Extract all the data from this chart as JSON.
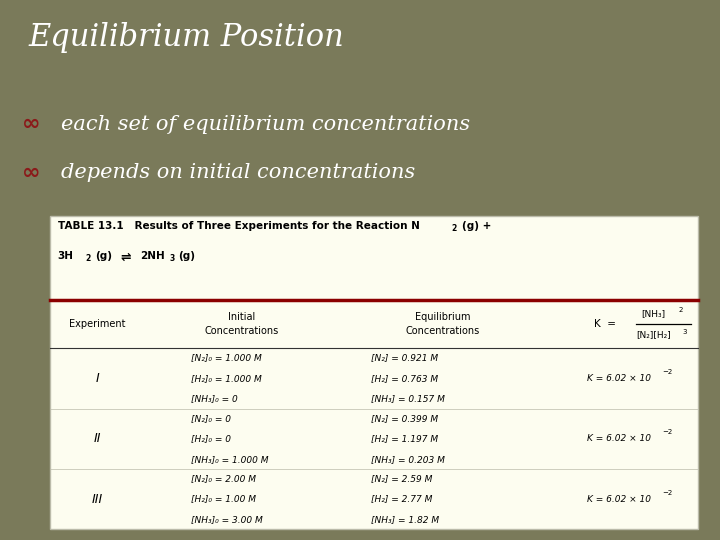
{
  "title": "Equilibrium Position",
  "bullet1": "each set of equilibrium concentrations",
  "bullet2": "depends on initial concentrations",
  "bg_color": "#7a7a5a",
  "table_bg": "#fdfdf0",
  "table_border_color": "#8b0000",
  "experiments": [
    "I",
    "II",
    "III"
  ],
  "initial_concs": [
    [
      "[N₂]₀ = 1.000 M",
      "[H₂]₀ = 1.000 M",
      "[NH₃]₀ = 0"
    ],
    [
      "[N₂]₀ = 0",
      "[H₂]₀ = 0",
      "[NH₃]₀ = 1.000 M"
    ],
    [
      "[N₂]₀ = 2.00 M",
      "[H₂]₀ = 1.00 M",
      "[NH₃]₀ = 3.00 M"
    ]
  ],
  "eq_concs": [
    [
      "[N₂] = 0.921 M",
      "[H₂] = 0.763 M",
      "[NH₃] = 0.157 M"
    ],
    [
      "[N₂] = 0.399 M",
      "[H₂] = 1.197 M",
      "[NH₃] = 0.203 M"
    ],
    [
      "[N₂] = 2.59 M",
      "[H₂] = 2.77 M",
      "[NH₃] = 1.82 M"
    ]
  ]
}
